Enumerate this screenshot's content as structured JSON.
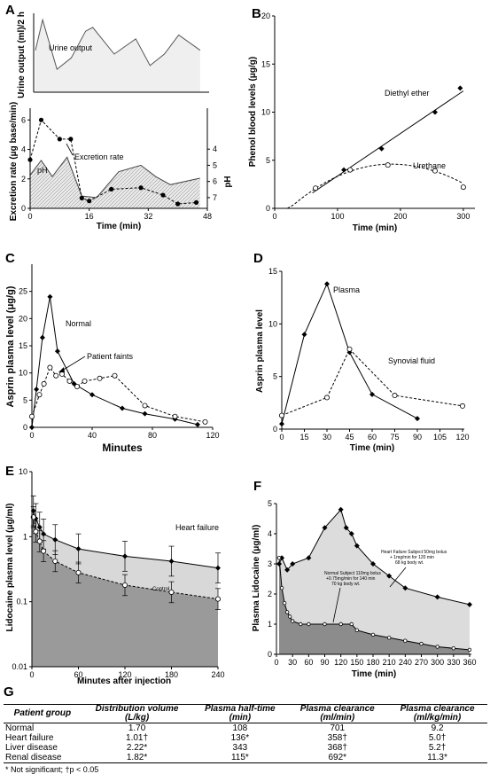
{
  "chart_data": [
    {
      "panel": "A",
      "type": "area",
      "ylabel": "Urine output (ml)/2 h",
      "series": [
        {
          "name": "Urine output",
          "x": [
            0,
            2,
            6,
            10,
            14,
            16,
            22,
            28,
            32,
            36,
            40,
            46
          ],
          "values": [
            0.55,
            0.95,
            0.3,
            0.45,
            0.8,
            0.85,
            0.5,
            0.7,
            0.35,
            0.5,
            0.75,
            0.55
          ]
        }
      ]
    },
    {
      "panel": "A",
      "type": "line",
      "xlabel": "Time (min)",
      "ylabel": "Excretion rate (μg base/min)",
      "ylabel_right": "pH",
      "xlim": [
        0,
        48
      ],
      "ylim": [
        0,
        6
      ],
      "ylim_right": [
        3,
        7.5
      ],
      "x_ticks": [
        0,
        16,
        32,
        48
      ],
      "y_ticks": [
        0,
        2,
        4,
        6
      ],
      "y_ticks_right": [
        4,
        5,
        6,
        7
      ],
      "series": [
        {
          "name": "Excretion rate",
          "x": [
            0,
            3,
            8,
            11,
            14,
            16,
            22,
            30,
            36,
            40,
            45
          ],
          "values": [
            3.3,
            6.0,
            4.7,
            4.7,
            0.7,
            0.5,
            1.3,
            1.4,
            0.9,
            0.3,
            0.4
          ]
        },
        {
          "name": "pH",
          "x": [
            0,
            3,
            6,
            10,
            14,
            18,
            24,
            30,
            34,
            38,
            46
          ],
          "values": [
            5.6,
            4.7,
            5.7,
            4.5,
            6.9,
            7.0,
            5.4,
            5.0,
            5.7,
            6.2,
            5.8
          ]
        }
      ]
    },
    {
      "panel": "B",
      "type": "line",
      "xlabel": "Time (min)",
      "ylabel": "Phenol blood levels (μg/g)",
      "xlim": [
        0,
        310
      ],
      "ylim": [
        0,
        20
      ],
      "x_ticks": [
        0,
        100,
        200,
        300
      ],
      "y_ticks": [
        0,
        5,
        10,
        15,
        20
      ],
      "series": [
        {
          "name": "Diethyl ether",
          "x": [
            65,
            110,
            170,
            255,
            295
          ],
          "values": [
            2.1,
            4.0,
            6.2,
            10.0,
            12.5
          ]
        },
        {
          "name": "Urethane",
          "x": [
            65,
            120,
            180,
            255,
            300
          ],
          "values": [
            2.1,
            4.0,
            4.5,
            3.9,
            2.2
          ]
        }
      ]
    },
    {
      "panel": "C",
      "type": "line",
      "xlabel": "Minutes",
      "ylabel": "Asprin plasma level (μg/g)",
      "xlim": [
        0,
        120
      ],
      "ylim": [
        0,
        30
      ],
      "x_ticks": [
        0,
        40,
        80,
        120
      ],
      "y_ticks": [
        0,
        5,
        10,
        15,
        20,
        25
      ],
      "annotations": [
        "Normal",
        "Patient faints"
      ],
      "series": [
        {
          "name": "Normal",
          "x": [
            0,
            3,
            7,
            12,
            17,
            28,
            40,
            60,
            75,
            95,
            110
          ],
          "values": [
            0,
            7,
            16.5,
            24,
            14,
            8,
            6,
            3.5,
            2.5,
            1.5,
            0.5
          ]
        },
        {
          "name": "Patient faints",
          "x": [
            0,
            5,
            8,
            12,
            16,
            20,
            25,
            30,
            35,
            45,
            55,
            75,
            95,
            115
          ],
          "values": [
            2,
            6,
            8,
            11,
            9.5,
            9.8,
            8.5,
            7.5,
            8.5,
            9,
            9.5,
            4,
            2,
            1
          ]
        }
      ]
    },
    {
      "panel": "D",
      "type": "line",
      "xlabel": "Time (min)",
      "ylabel": "Asprin plasma level",
      "xlim": [
        0,
        120
      ],
      "ylim": [
        0,
        15
      ],
      "x_ticks": [
        0,
        15,
        30,
        45,
        60,
        75,
        90,
        105,
        120
      ],
      "y_ticks": [
        0,
        5,
        10,
        15
      ],
      "series": [
        {
          "name": "Plasma",
          "x": [
            0,
            15,
            30,
            45,
            60,
            90
          ],
          "values": [
            0.5,
            9.0,
            13.8,
            7.3,
            3.3,
            1.0
          ]
        },
        {
          "name": "Synovial fluid",
          "x": [
            0,
            30,
            45,
            75,
            120
          ],
          "values": [
            1.3,
            3.0,
            7.6,
            3.2,
            2.2
          ]
        }
      ]
    },
    {
      "panel": "E",
      "type": "line",
      "xlabel": "Minutes after injection",
      "ylabel": "Lidocaine plasma level (μg/ml)",
      "xlim": [
        0,
        240
      ],
      "ylim": [
        0.01,
        10
      ],
      "y_scale": "log",
      "x_ticks": [
        0,
        60,
        120,
        180,
        240
      ],
      "y_ticks": [
        "0.01",
        "0.1",
        "1",
        "10"
      ],
      "series": [
        {
          "name": "Heart failure",
          "x": [
            2,
            5,
            10,
            15,
            30,
            60,
            120,
            180,
            240
          ],
          "values": [
            2.5,
            1.9,
            1.4,
            1.1,
            0.9,
            0.65,
            0.5,
            0.42,
            0.33
          ]
        },
        {
          "name": "Control",
          "x": [
            2,
            5,
            10,
            15,
            30,
            60,
            120,
            180,
            240
          ],
          "values": [
            2.0,
            1.2,
            0.85,
            0.6,
            0.42,
            0.28,
            0.18,
            0.14,
            0.11
          ]
        }
      ]
    },
    {
      "panel": "F",
      "type": "area",
      "xlabel": "Time (min)",
      "ylabel": "Plasma Lidocaine (μg/ml)",
      "xlim": [
        0,
        360
      ],
      "ylim": [
        0,
        5
      ],
      "x_ticks": [
        0,
        30,
        60,
        90,
        120,
        150,
        180,
        210,
        240,
        270,
        300,
        330,
        360
      ],
      "y_ticks": [
        0,
        1,
        2,
        3,
        4,
        5
      ],
      "series": [
        {
          "name": "Heart Failure Subject 50mg bolus + 1mg/min for 120 min 68 kg body wt.",
          "x": [
            5,
            10,
            20,
            30,
            60,
            90,
            120,
            130,
            140,
            150,
            180,
            210,
            240,
            300,
            360
          ],
          "values": [
            3.0,
            3.2,
            2.8,
            3.0,
            3.2,
            4.2,
            4.8,
            4.2,
            4.0,
            3.6,
            3.0,
            2.6,
            2.2,
            1.9,
            1.65
          ]
        },
        {
          "name": "Normal Subject 110mg bolus +0.75mg/min for 140 min 70 kg body wt.",
          "x": [
            5,
            10,
            15,
            20,
            25,
            30,
            45,
            60,
            90,
            120,
            140,
            150,
            180,
            210,
            240,
            270,
            300,
            330,
            360
          ],
          "values": [
            3.2,
            2.2,
            1.7,
            1.4,
            1.25,
            1.1,
            1.0,
            1.0,
            1.0,
            1.0,
            1.0,
            0.8,
            0.65,
            0.55,
            0.45,
            0.35,
            0.25,
            0.2,
            0.15
          ]
        }
      ]
    }
  ],
  "panels": {
    "a": "A",
    "b": "B",
    "c": "C",
    "d": "D",
    "e": "E",
    "f": "F",
    "g": "G"
  },
  "labels": {
    "a_top_y": "Urine output (ml)/2 h",
    "a_top_series": "Urine output",
    "a_y": "Excretion rate (μg base/min)",
    "a_y2": "pH",
    "a_x": "Time (min)",
    "a_ph": "pH",
    "a_exc": "Excretion rate",
    "b_y": "Phenol blood levels (μg/g)",
    "b_x": "Time (min)",
    "b_s1": "Diethyl ether",
    "b_s2": "Urethane",
    "c_y": "Asprin plasma level (μg/g)",
    "c_x": "Minutes",
    "c_s1": "Normal",
    "c_s2": "Patient faints",
    "d_y": "Asprin plasma level",
    "d_x": "Time (min)",
    "d_s1": "Plasma",
    "d_s2": "Synovial fluid",
    "e_y": "Lidocaine plasma level (μg/ml)",
    "e_x": "Minutes after injection",
    "e_s1": "Heart failure",
    "e_s2": "Control",
    "f_y": "Plasma Lidocaine (μg/ml)",
    "f_x": "Time (min)",
    "f_s1_l1": "Heart Failure Subject 50mg bolus",
    "f_s1_l2": "+ 1mg/min for 120 min",
    "f_s1_l3": "68 kg body wt.",
    "f_s2_l1": "Normal Subject 110mg bolus",
    "f_s2_l2": "+0.75mg/min for 140 min",
    "f_s2_l3": "70 kg body wt."
  },
  "ticks": {
    "a_x": [
      "0",
      "16",
      "32",
      "48"
    ],
    "a_y": [
      "0",
      "2",
      "4",
      "6"
    ],
    "a_y2": [
      "4",
      "5",
      "6",
      "7"
    ],
    "b_x": [
      "0",
      "100",
      "200",
      "300"
    ],
    "b_y": [
      "0",
      "5",
      "10",
      "15",
      "20"
    ],
    "c_x": [
      "0",
      "40",
      "80",
      "120"
    ],
    "c_y": [
      "0",
      "5",
      "10",
      "15",
      "20",
      "25"
    ],
    "d_x": [
      "0",
      "15",
      "30",
      "45",
      "60",
      "75",
      "90",
      "105",
      "120"
    ],
    "d_y": [
      "0",
      "5",
      "10",
      "15"
    ],
    "e_x": [
      "0",
      "60",
      "120",
      "180",
      "240"
    ],
    "e_y": [
      "0.01",
      "0.1",
      "1",
      "10"
    ],
    "f_x": [
      "0",
      "30",
      "60",
      "90",
      "120",
      "150",
      "180",
      "210",
      "240",
      "270",
      "300",
      "330",
      "360"
    ],
    "f_y": [
      "0",
      "1",
      "2",
      "3",
      "4",
      "5"
    ]
  },
  "table": {
    "headers": [
      {
        "l1": "Patient group",
        "l2": ""
      },
      {
        "l1": "Distribution volume",
        "l2": "(L/kg)"
      },
      {
        "l1": "Plasma half-time",
        "l2": "(min)"
      },
      {
        "l1": "Plasma clearance",
        "l2": "(ml/min)"
      },
      {
        "l1": "Plasma clearance",
        "l2": "(ml/kg/min)"
      }
    ],
    "rows": [
      [
        "Normal",
        "1.70",
        "108",
        "701",
        "9.2"
      ],
      [
        "Heart failure",
        "1.01†",
        "136*",
        "358†",
        "5.0†"
      ],
      [
        "Liver disease",
        "2.22*",
        "343",
        "368†",
        "5.2†"
      ],
      [
        "Renal disease",
        "1.82*",
        "115*",
        "692*",
        "11.3*"
      ]
    ],
    "footnote": "* Not significant; †p < 0.05"
  }
}
